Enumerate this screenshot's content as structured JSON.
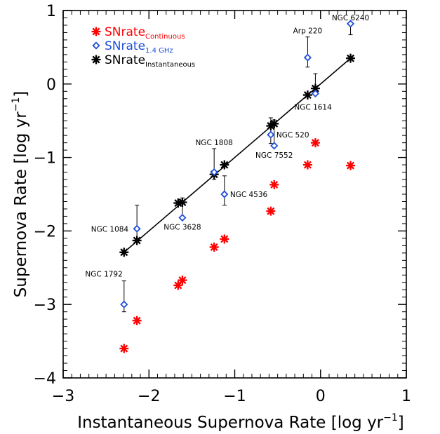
{
  "chart_data": {
    "type": "scatter",
    "title": "",
    "xlabel": "Instantaneous Supernova Rate [log yr",
    "xlabel_sup": "−1",
    "xlabel_end": "]",
    "ylabel": "Supernova Rate [log yr",
    "ylabel_sup": "−1",
    "ylabel_end": "]",
    "xlim": [
      -3,
      1
    ],
    "ylim": [
      -4,
      1
    ],
    "x_ticks": [
      -3,
      -2,
      -1,
      0,
      1
    ],
    "x_tick_labels": [
      "−3",
      "−2",
      "−1",
      "0",
      "1"
    ],
    "y_ticks": [
      -4,
      -3,
      -2,
      -1,
      0,
      1
    ],
    "y_tick_labels": [
      "−4",
      "−3",
      "−2",
      "−1",
      "0",
      "1"
    ],
    "grid": false,
    "legend_position": "top-left",
    "legend": [
      {
        "series": "continuous",
        "name": "SNrate",
        "sub": "Continuous",
        "color": "#ff0000",
        "marker": "asterisk"
      },
      {
        "series": "radio",
        "name": "SNrate",
        "sub": "1.4 GHz",
        "color": "#1f4fd8",
        "marker": "diamond"
      },
      {
        "series": "instantaneous",
        "name": "SNrate",
        "sub": "Instantaneous",
        "color": "#000000",
        "marker": "asterisk"
      }
    ],
    "fit_line": {
      "x": [
        -2.29,
        0.35
      ],
      "y": [
        -2.29,
        0.35
      ],
      "color": "#000000"
    },
    "series": [
      {
        "id": "continuous",
        "color": "#ff0000",
        "marker": "asterisk",
        "points": [
          {
            "x": -2.29,
            "y": -3.6
          },
          {
            "x": -2.14,
            "y": -3.22
          },
          {
            "x": -1.66,
            "y": -2.74
          },
          {
            "x": -1.61,
            "y": -2.67
          },
          {
            "x": -1.24,
            "y": -2.22
          },
          {
            "x": -1.12,
            "y": -2.11
          },
          {
            "x": -0.58,
            "y": -1.73
          },
          {
            "x": -0.54,
            "y": -1.37
          },
          {
            "x": -0.15,
            "y": -1.1
          },
          {
            "x": -0.06,
            "y": -0.8
          },
          {
            "x": 0.35,
            "y": -1.11
          }
        ]
      },
      {
        "id": "instantaneous",
        "color": "#000000",
        "marker": "asterisk",
        "points": [
          {
            "x": -2.29,
            "y": -2.29
          },
          {
            "x": -2.14,
            "y": -2.13
          },
          {
            "x": -1.66,
            "y": -1.62
          },
          {
            "x": -1.61,
            "y": -1.61
          },
          {
            "x": -1.24,
            "y": -1.23
          },
          {
            "x": -1.12,
            "y": -1.1
          },
          {
            "x": -0.58,
            "y": -0.57
          },
          {
            "x": -0.54,
            "y": -0.54
          },
          {
            "x": -0.15,
            "y": -0.15
          },
          {
            "x": -0.06,
            "y": -0.06
          },
          {
            "x": 0.35,
            "y": 0.35
          }
        ]
      },
      {
        "id": "radio",
        "color": "#1f4fd8",
        "marker": "diamond",
        "points": [
          {
            "name": "NGC 1792",
            "x": -2.29,
            "y": -3.0,
            "err_up": 0.32,
            "err_down": 0.1,
            "label": "NGC 1792",
            "label_pos": "above-left"
          },
          {
            "name": "NGC 1084",
            "x": -2.14,
            "y": -1.97,
            "err_up": 0.32,
            "err_down": 0.17,
            "label": "NGC 1084",
            "label_pos": "left"
          },
          {
            "name": "NGC 3628",
            "x": -1.61,
            "y": -1.82,
            "err_up": 0.27,
            "err_down": 0.0,
            "label": "NGC 3628",
            "label_pos": "below"
          },
          {
            "name": "NGC 1808",
            "x": -1.24,
            "y": -1.2,
            "err_up": 0.32,
            "err_down": 0.1,
            "label": "NGC 1808",
            "label_pos": "above"
          },
          {
            "name": "NGC 4536",
            "x": -1.12,
            "y": -1.5,
            "err_up": 0.25,
            "err_down": 0.15,
            "label": "NGC 4536",
            "label_pos": "right"
          },
          {
            "name": "NGC 520",
            "x": -0.58,
            "y": -0.69,
            "err_up": 0.23,
            "err_down": 0.12,
            "label": "NGC 520",
            "label_pos": "right"
          },
          {
            "name": "NGC 7552",
            "x": -0.54,
            "y": -0.84,
            "err_up": 0.35,
            "err_down": 0.0,
            "label": "NGC 7552",
            "label_pos": "below"
          },
          {
            "name": "NGC 1614",
            "x": -0.06,
            "y": -0.13,
            "err_up": 0.27,
            "err_down": 0.0,
            "label": "NGC 1614",
            "label_pos": "below"
          },
          {
            "name": "Arp 220",
            "x": -0.15,
            "y": 0.36,
            "err_up": 0.28,
            "err_down": 0.13,
            "label": "Arp 220",
            "label_pos": "above"
          },
          {
            "name": "NGC 6240",
            "x": 0.35,
            "y": 0.82,
            "err_up": 0.0,
            "err_down": 0.15,
            "label": "NGC 6240",
            "label_pos": "above"
          }
        ]
      }
    ]
  }
}
